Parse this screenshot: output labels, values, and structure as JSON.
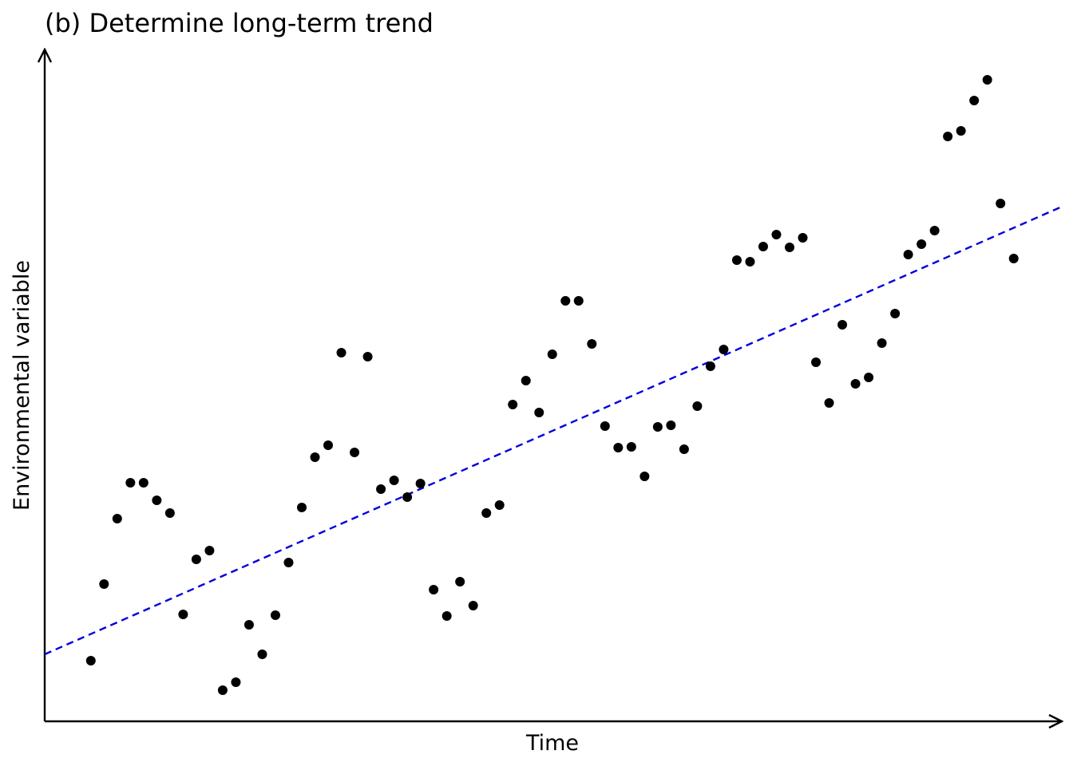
{
  "chart_data": {
    "type": "scatter",
    "title": "(b) Determine long-term trend",
    "x_label": "Time",
    "y_label": "Environmental variable",
    "xlim": [
      -2.5,
      74.65
    ],
    "ylim": [
      0,
      84.1
    ],
    "series": [
      {
        "color": "#000000",
        "x": [
          1,
          2,
          3,
          4,
          5,
          6,
          7,
          8,
          9,
          10,
          11,
          12,
          13,
          14,
          15,
          16,
          17,
          18,
          19,
          20,
          21,
          22,
          23,
          24,
          25,
          26,
          27,
          28,
          29,
          30,
          31,
          32,
          33,
          34,
          35,
          36,
          37,
          38,
          39,
          40,
          41,
          42,
          43,
          44,
          45,
          46,
          47,
          48,
          49,
          50,
          51,
          52,
          53,
          54,
          55,
          56,
          57,
          58,
          59,
          60,
          61,
          62,
          63,
          64,
          65,
          66,
          67,
          68,
          69,
          70,
          71
        ],
        "values": [
          7.5,
          17.1,
          25.3,
          29.8,
          29.8,
          27.6,
          26.0,
          13.3,
          20.2,
          21.3,
          3.8,
          4.8,
          12.0,
          8.3,
          13.2,
          19.8,
          26.7,
          33.0,
          34.5,
          46.1,
          33.6,
          45.6,
          29.0,
          30.1,
          28.0,
          29.7,
          16.4,
          13.1,
          17.4,
          14.4,
          26.0,
          27.0,
          39.6,
          42.6,
          38.6,
          45.9,
          52.6,
          52.6,
          47.2,
          36.9,
          34.2,
          34.3,
          30.6,
          36.8,
          37.0,
          34.0,
          39.4,
          44.4,
          46.5,
          57.7,
          57.5,
          59.4,
          60.9,
          59.3,
          60.5,
          44.9,
          39.8,
          49.6,
          42.2,
          43.0,
          47.3,
          51.0,
          58.4,
          59.7,
          61.4,
          73.2,
          73.9,
          77.7,
          80.3,
          64.8,
          57.9
        ]
      }
    ],
    "trend_line": {
      "color": "#0000dd",
      "x": [
        -2.5,
        74.65
      ],
      "values": [
        8.3,
        64.4
      ]
    }
  }
}
